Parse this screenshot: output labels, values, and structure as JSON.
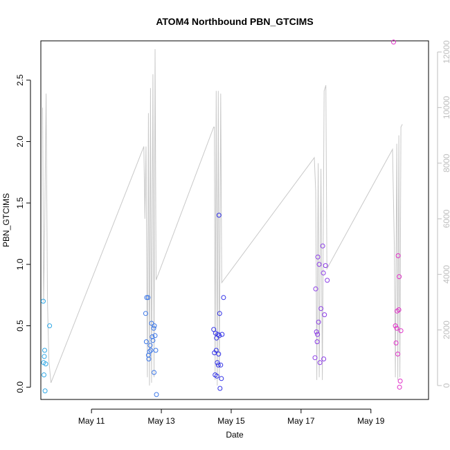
{
  "chart_data": {
    "type": "scatter",
    "title": "ATOM4 Northbound PBN_GTCIMS",
    "xlabel": "Date",
    "ylabel": "PBN_GTCIMS",
    "x_unit": "day of May (fractional)",
    "xlim": [
      9.55,
      20.65
    ],
    "ylim": [
      -0.1,
      2.82
    ],
    "y2lim": [
      -500,
      12400
    ],
    "x_ticks": [
      {
        "value": 11,
        "label": "May 11"
      },
      {
        "value": 13,
        "label": "May 13"
      },
      {
        "value": 15,
        "label": "May 15"
      },
      {
        "value": 17,
        "label": "May 17"
      },
      {
        "value": 19,
        "label": "May 19"
      }
    ],
    "y_ticks": [
      {
        "value": 0.0,
        "label": "0.0"
      },
      {
        "value": 0.5,
        "label": "0.5"
      },
      {
        "value": 1.0,
        "label": "1.0"
      },
      {
        "value": 1.5,
        "label": "1.5"
      },
      {
        "value": 2.0,
        "label": "2.0"
      },
      {
        "value": 2.5,
        "label": "2.5"
      }
    ],
    "y2_ticks": [
      {
        "value": 0,
        "label": "0"
      },
      {
        "value": 2000,
        "label": "2000"
      },
      {
        "value": 4000,
        "label": "4000"
      },
      {
        "value": 6000,
        "label": "6000"
      },
      {
        "value": 8000,
        "label": "8000"
      },
      {
        "value": 10000,
        "label": "10000"
      },
      {
        "value": 12000,
        "label": "12000"
      }
    ],
    "line_color": "#c8c8c8",
    "axis_color": "#000000",
    "y2_axis_color": "#bebebe",
    "points": [
      {
        "x": 9.62,
        "y": 0.7,
        "color": "#2fa8e6"
      },
      {
        "x": 9.63,
        "y": 0.2,
        "color": "#2fa8e6"
      },
      {
        "x": 9.64,
        "y": 0.1,
        "color": "#2fa8e6"
      },
      {
        "x": 9.65,
        "y": 0.25,
        "color": "#2fa8e6"
      },
      {
        "x": 9.66,
        "y": 0.3,
        "color": "#2fa8e6"
      },
      {
        "x": 9.67,
        "y": -0.03,
        "color": "#2fa8e6"
      },
      {
        "x": 9.69,
        "y": 0.19,
        "color": "#2fa8e6"
      },
      {
        "x": 9.8,
        "y": 0.5,
        "color": "#2fa8e6"
      },
      {
        "x": 12.55,
        "y": 0.6,
        "color": "#3b77e8"
      },
      {
        "x": 12.57,
        "y": 0.37,
        "color": "#3b77e8"
      },
      {
        "x": 12.58,
        "y": 0.73,
        "color": "#3b77e8"
      },
      {
        "x": 12.62,
        "y": 0.73,
        "color": "#3b77e8"
      },
      {
        "x": 12.63,
        "y": 0.26,
        "color": "#3b77e8"
      },
      {
        "x": 12.64,
        "y": 0.23,
        "color": "#3b77e8"
      },
      {
        "x": 12.66,
        "y": 0.29,
        "color": "#3b77e8"
      },
      {
        "x": 12.68,
        "y": 0.34,
        "color": "#3b77e8"
      },
      {
        "x": 12.7,
        "y": 0.3,
        "color": "#3b77e8"
      },
      {
        "x": 12.72,
        "y": 0.52,
        "color": "#3b77e8"
      },
      {
        "x": 12.74,
        "y": 0.41,
        "color": "#3b77e8"
      },
      {
        "x": 12.76,
        "y": 0.38,
        "color": "#3b77e8"
      },
      {
        "x": 12.78,
        "y": 0.48,
        "color": "#3b77e8"
      },
      {
        "x": 12.79,
        "y": 0.12,
        "color": "#3b77e8"
      },
      {
        "x": 12.8,
        "y": 0.5,
        "color": "#3b77e8"
      },
      {
        "x": 12.82,
        "y": 0.42,
        "color": "#3b77e8"
      },
      {
        "x": 12.84,
        "y": 0.3,
        "color": "#3b77e8"
      },
      {
        "x": 12.86,
        "y": -0.06,
        "color": "#3b77e8"
      },
      {
        "x": 14.5,
        "y": 0.47,
        "color": "#2f2fe6"
      },
      {
        "x": 14.52,
        "y": 0.28,
        "color": "#2f2fe6"
      },
      {
        "x": 14.54,
        "y": 0.1,
        "color": "#2f2fe6"
      },
      {
        "x": 14.55,
        "y": 0.44,
        "color": "#2f2fe6"
      },
      {
        "x": 14.57,
        "y": 0.3,
        "color": "#2f2fe6"
      },
      {
        "x": 14.58,
        "y": 0.4,
        "color": "#2f2fe6"
      },
      {
        "x": 14.59,
        "y": 0.09,
        "color": "#2f2fe6"
      },
      {
        "x": 14.6,
        "y": 0.2,
        "color": "#2f2fe6"
      },
      {
        "x": 14.62,
        "y": 0.43,
        "color": "#2f2fe6"
      },
      {
        "x": 14.63,
        "y": 0.18,
        "color": "#2f2fe6"
      },
      {
        "x": 14.64,
        "y": 0.27,
        "color": "#2f2fe6"
      },
      {
        "x": 14.65,
        "y": 1.4,
        "color": "#2f2fe6"
      },
      {
        "x": 14.66,
        "y": 0.42,
        "color": "#2f2fe6"
      },
      {
        "x": 14.67,
        "y": 0.6,
        "color": "#2f2fe6"
      },
      {
        "x": 14.68,
        "y": -0.01,
        "color": "#2f2fe6"
      },
      {
        "x": 14.7,
        "y": 0.18,
        "color": "#2f2fe6"
      },
      {
        "x": 14.72,
        "y": 0.07,
        "color": "#2f2fe6"
      },
      {
        "x": 14.74,
        "y": 0.43,
        "color": "#2f2fe6"
      },
      {
        "x": 14.78,
        "y": 0.73,
        "color": "#2f2fe6"
      },
      {
        "x": 17.4,
        "y": 0.24,
        "color": "#8a3ae6"
      },
      {
        "x": 17.42,
        "y": 0.8,
        "color": "#8a3ae6"
      },
      {
        "x": 17.44,
        "y": 0.45,
        "color": "#8a3ae6"
      },
      {
        "x": 17.46,
        "y": 0.37,
        "color": "#8a3ae6"
      },
      {
        "x": 17.47,
        "y": 0.43,
        "color": "#8a3ae6"
      },
      {
        "x": 17.48,
        "y": 1.06,
        "color": "#8a3ae6"
      },
      {
        "x": 17.5,
        "y": 0.53,
        "color": "#8a3ae6"
      },
      {
        "x": 17.52,
        "y": 1.0,
        "color": "#8a3ae6"
      },
      {
        "x": 17.54,
        "y": 0.2,
        "color": "#8a3ae6"
      },
      {
        "x": 17.57,
        "y": 0.64,
        "color": "#8a3ae6"
      },
      {
        "x": 17.62,
        "y": 1.15,
        "color": "#8a3ae6"
      },
      {
        "x": 17.64,
        "y": 0.93,
        "color": "#8a3ae6"
      },
      {
        "x": 17.65,
        "y": 0.23,
        "color": "#8a3ae6"
      },
      {
        "x": 17.67,
        "y": 0.59,
        "color": "#8a3ae6"
      },
      {
        "x": 17.7,
        "y": 0.99,
        "color": "#8a3ae6"
      },
      {
        "x": 17.75,
        "y": 0.87,
        "color": "#8a3ae6"
      },
      {
        "x": 19.65,
        "y": 2.81,
        "color": "#e02fc8"
      },
      {
        "x": 19.7,
        "y": 0.5,
        "color": "#e02fc8"
      },
      {
        "x": 19.72,
        "y": 0.36,
        "color": "#e02fc8"
      },
      {
        "x": 19.74,
        "y": 0.48,
        "color": "#e02fc8"
      },
      {
        "x": 19.75,
        "y": 0.62,
        "color": "#e02fc8"
      },
      {
        "x": 19.77,
        "y": 0.27,
        "color": "#e02fc8"
      },
      {
        "x": 19.78,
        "y": 1.07,
        "color": "#e02fc8"
      },
      {
        "x": 19.8,
        "y": 0.63,
        "color": "#e02fc8"
      },
      {
        "x": 19.81,
        "y": 0.9,
        "color": "#e02fc8"
      },
      {
        "x": 19.82,
        "y": 0.0,
        "color": "#e02fc8"
      },
      {
        "x": 19.84,
        "y": 0.05,
        "color": "#e02fc8"
      },
      {
        "x": 19.86,
        "y": 0.46,
        "color": "#e02fc8"
      }
    ],
    "line_series": {
      "axis": "right",
      "points": [
        [
          9.6,
          10000
        ],
        [
          9.63,
          3000
        ],
        [
          9.66,
          5500
        ],
        [
          9.7,
          10500
        ],
        [
          9.74,
          3000
        ],
        [
          9.78,
          900
        ],
        [
          9.84,
          100
        ],
        [
          12.5,
          8600
        ],
        [
          12.53,
          6000
        ],
        [
          12.56,
          8600
        ],
        [
          12.6,
          300
        ],
        [
          12.63,
          9800
        ],
        [
          12.66,
          0
        ],
        [
          12.69,
          10700
        ],
        [
          12.72,
          100
        ],
        [
          12.76,
          11200
        ],
        [
          12.79,
          300
        ],
        [
          12.82,
          12100
        ],
        [
          12.85,
          3800
        ],
        [
          14.5,
          9300
        ],
        [
          14.52,
          9300
        ],
        [
          14.54,
          200
        ],
        [
          14.57,
          10600
        ],
        [
          14.6,
          0
        ],
        [
          14.63,
          10600
        ],
        [
          14.66,
          200
        ],
        [
          14.7,
          10500
        ],
        [
          14.73,
          3700
        ],
        [
          17.38,
          8200
        ],
        [
          17.42,
          7000
        ],
        [
          17.45,
          200
        ],
        [
          17.49,
          8000
        ],
        [
          17.52,
          300
        ],
        [
          17.57,
          7800
        ],
        [
          17.61,
          200
        ],
        [
          17.66,
          10600
        ],
        [
          17.71,
          10800
        ],
        [
          17.74,
          4200
        ],
        [
          19.62,
          8500
        ],
        [
          19.67,
          5000
        ],
        [
          19.7,
          300
        ],
        [
          19.74,
          8700
        ],
        [
          19.77,
          200
        ],
        [
          19.8,
          9000
        ],
        [
          19.83,
          300
        ],
        [
          19.86,
          9300
        ],
        [
          19.9,
          9400
        ]
      ]
    }
  }
}
